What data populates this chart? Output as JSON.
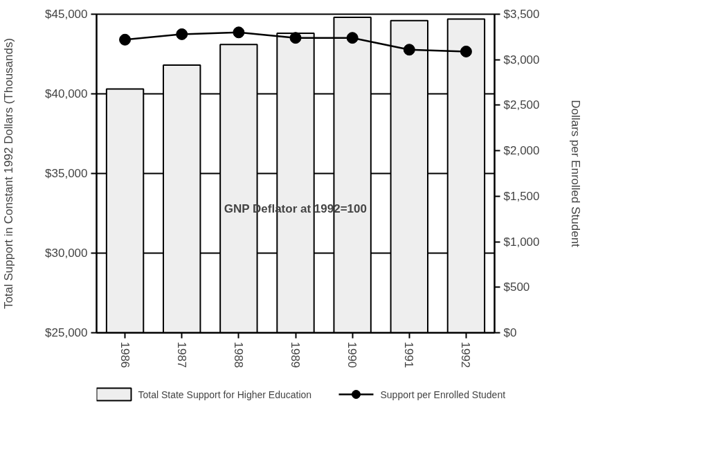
{
  "chart_data": {
    "type": "bar",
    "categories": [
      "1986",
      "1987",
      "1988",
      "1989",
      "1990",
      "1991",
      "1992"
    ],
    "ylabel": "Total Support in Constant 1992 Dollars (Thousands)",
    "y2label": "Dollars per Enrolled Student",
    "annotations": [
      "GNP Deflator at 1992=100"
    ],
    "series": [
      {
        "name": "Total State Support for Higher Education",
        "color": "#eeeeee",
        "values": [
          40300,
          41800,
          43100,
          43800,
          44800,
          44600,
          44700
        ]
      },
      {
        "name": "Support per Enrolled Student",
        "type": "line",
        "axis": "y2",
        "color": "#000000",
        "marker": "circle",
        "values": [
          3220,
          3280,
          3300,
          3240,
          3240,
          3110,
          3090
        ]
      }
    ],
    "ylim": [
      25000,
      45000
    ],
    "yticks": [
      {
        "value": 25000,
        "label": "$25,000"
      },
      {
        "value": 30000,
        "label": "$30,000"
      },
      {
        "value": 35000,
        "label": "$35,000"
      },
      {
        "value": 40000,
        "label": "$40,000"
      },
      {
        "value": 45000,
        "label": "$45,000"
      }
    ],
    "y2lim": [
      0,
      3500
    ],
    "y2ticks": [
      {
        "value": 0,
        "label": "$0"
      },
      {
        "value": 500,
        "label": "$500"
      },
      {
        "value": 1000,
        "label": "$1,000"
      },
      {
        "value": 1500,
        "label": "$1,500"
      },
      {
        "value": 2000,
        "label": "$2,000"
      },
      {
        "value": 2500,
        "label": "$2,500"
      },
      {
        "value": 3000,
        "label": "$3,000"
      },
      {
        "value": 3500,
        "label": "$3,500"
      }
    ],
    "grid": "y",
    "legend": "bottom"
  }
}
